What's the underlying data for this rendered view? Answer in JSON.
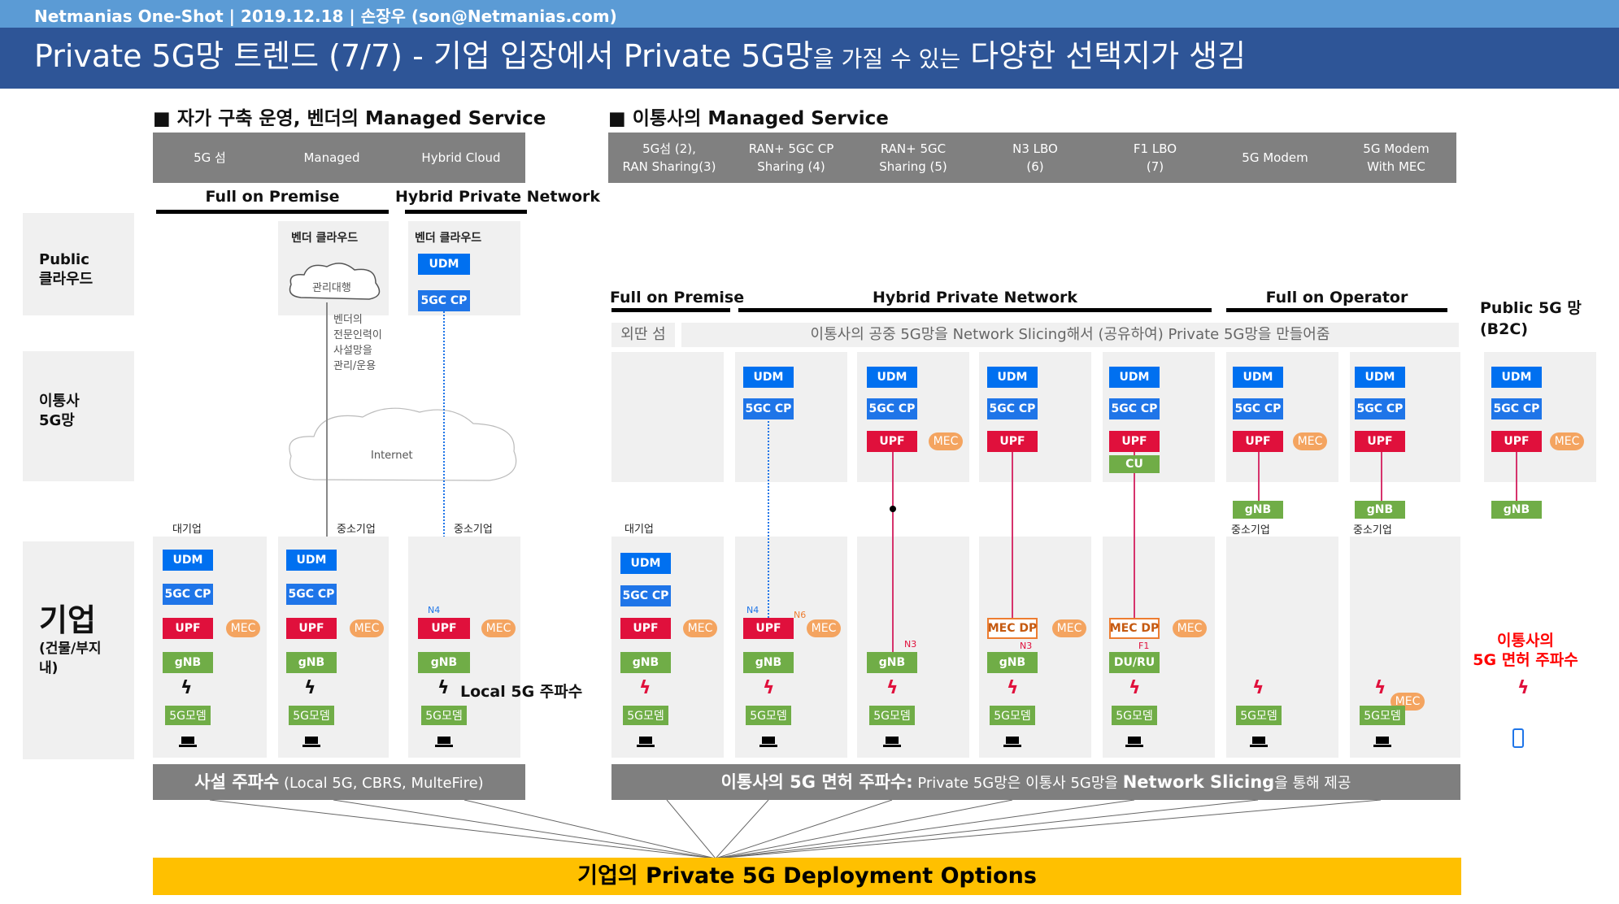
{
  "header": {
    "top_bar": "Netmanias One-Shot | 2019.12.18 | 손장우 (son@Netmanias.com)",
    "title_main": "Private 5G망 트렌드 (7/7) - 기업 입장에서 Private 5G망",
    "title_small": "을 가질 수 있는",
    "title_tail": "다양한 선택지가 생김"
  },
  "sections": {
    "left": "■ 자가 구축 운영, 벤더의 Managed Service",
    "right": "■ 이통사의 Managed Service"
  },
  "left_options": [
    "5G 섬",
    "Managed",
    "Hybrid Cloud"
  ],
  "right_options": [
    "5G섬 (2),\nRAN Sharing(3)",
    "RAN+ 5GC CP\nSharing (4)",
    "RAN+ 5GC\nSharing (5)",
    "N3 LBO\n(6)",
    "F1 LBO\n(7)",
    "5G Modem",
    "5G Modem\nWith MEC"
  ],
  "groups": {
    "full_on_premise": "Full on Premise",
    "hybrid_private_network": "Hybrid Private Network",
    "full_on_operator": "Full on Operator",
    "public_5g": "Public 5G 망\n(B2C)"
  },
  "rows": {
    "public_cloud": "Public\n클라우드",
    "operator_5g": "이통사\n5G망",
    "enterprise": "기업",
    "enterprise_sub": "(건물/부지내)"
  },
  "cloud": {
    "vendor_cloud": "벤더 클라우드",
    "managed_agent": "관리대행",
    "vendor_note": "벤더의\n전문인력이\n사설망을\n관리/운용",
    "internet": "Internet"
  },
  "banner": {
    "island": "외딴 섬",
    "slicing": "이통사의 공중 5G망을 Network Slicing해서 (공유하여) Private 5G망을 만들어줌"
  },
  "labels": {
    "large_enterprise": "대기업",
    "sme": "중소기업",
    "udm": "UDM",
    "cp": "5GC CP",
    "upf": "UPF",
    "mec": "MEC",
    "gnb": "gNB",
    "modem": "5G모뎀",
    "cu": "CU",
    "du_ru": "DU/RU",
    "mec_dp": "MEC DP",
    "n3": "N3",
    "n4": "N4",
    "n6": "N6",
    "f1": "F1",
    "local_5g": "Local 5G 주파수",
    "licensed_red": "이통사의\n5G 면허 주파수"
  },
  "bottom": {
    "left_bold": "사설 주파수",
    "left_normal": " (Local 5G, CBRS, MulteFire)",
    "right_bold": "이통사의 5G 면허 주파수:",
    "right_normal": " Private 5G망은 이통사 5G망을 ",
    "right_bold2": "Network Slicing",
    "right_normal2": "을 통해 제공",
    "deploy": "기업의 Private 5G Deployment Options"
  },
  "colors": {
    "title_bg": "#2e5597",
    "top_bg": "#5b9bd5",
    "udm": "#0070f0",
    "upf": "#e0103c",
    "gnb": "#70ad47",
    "mec": "#f4a460",
    "deploy": "#ffc000"
  }
}
